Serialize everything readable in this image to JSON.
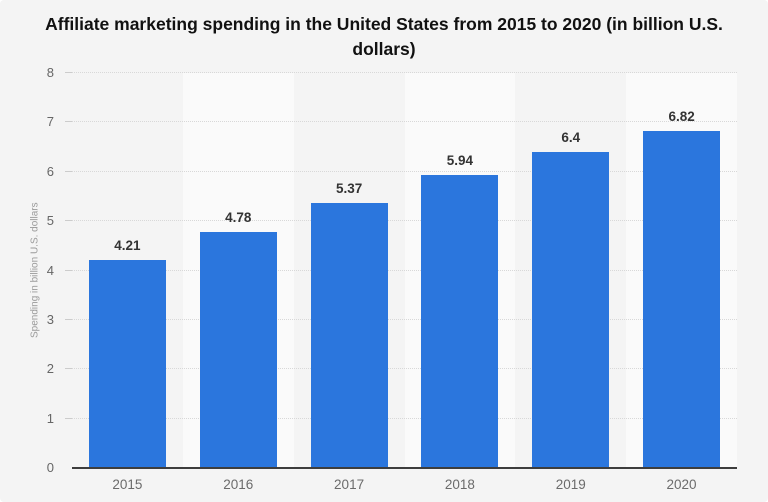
{
  "chart_data": {
    "type": "bar",
    "title": "Affiliate marketing spending in the United States from 2015 to 2020 (in billion U.S. dollars)",
    "categories": [
      "2015",
      "2016",
      "2017",
      "2018",
      "2019",
      "2020"
    ],
    "values": [
      4.21,
      4.78,
      5.37,
      5.94,
      6.4,
      6.82
    ],
    "value_labels": [
      "4.21",
      "4.78",
      "5.37",
      "5.94",
      "6.4",
      "6.82"
    ],
    "xlabel": "",
    "ylabel": "Spending in billion U.S. dollars",
    "ylim": [
      0,
      8
    ],
    "yticks": [
      0,
      1,
      2,
      3,
      4,
      5,
      6,
      7,
      8
    ],
    "grid": true,
    "legend": false,
    "colors": {
      "bar": "#2b76dd",
      "background": "#f4f4f4",
      "alt_band": "#fafafa",
      "gridline": "#d8d8d8",
      "axis_line": "#3d3d3d",
      "tick_text": "#666666",
      "value_text": "#333333",
      "title_text": "#111111"
    }
  }
}
